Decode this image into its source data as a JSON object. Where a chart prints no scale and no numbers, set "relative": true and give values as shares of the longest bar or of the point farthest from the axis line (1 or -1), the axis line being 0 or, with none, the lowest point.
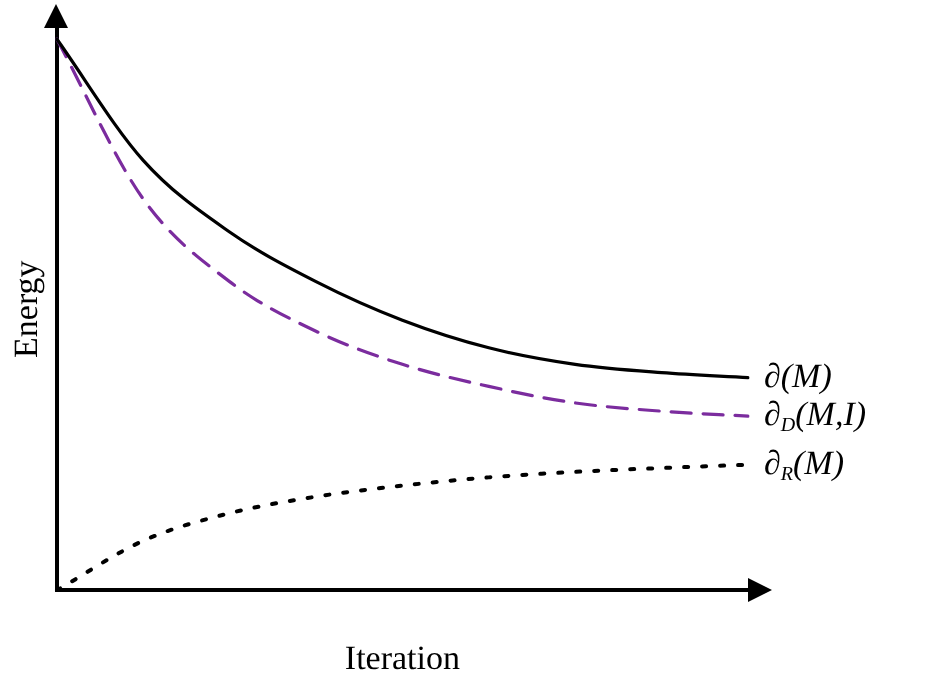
{
  "chart_data": {
    "type": "line",
    "xlabel": "Iteration",
    "ylabel": "Energy",
    "relative": true,
    "grid": false,
    "legend": false,
    "marker": "none",
    "categories": [
      null,
      null,
      null,
      null,
      null,
      null,
      null,
      null,
      null
    ],
    "series": [
      {
        "name": "∂(M)",
        "color": "#000000",
        "line_style": "solid",
        "values": [
          1,
          0.78,
          0.65,
          0.56,
          0.49,
          0.44,
          0.41,
          0.395,
          0.386
        ]
      },
      {
        "name": "∂$_{D}$(M,I)",
        "color": "#7b2c9e",
        "line_style": "dashed",
        "values": [
          1,
          0.71,
          0.56,
          0.47,
          0.41,
          0.37,
          0.34,
          0.325,
          0.316
        ]
      },
      {
        "name": "∂$_{R}$(M)",
        "color": "#000000",
        "line_style": "dotted",
        "values": [
          0,
          0.09,
          0.14,
          0.17,
          0.19,
          0.205,
          0.215,
          0.222,
          0.228
        ]
      }
    ]
  }
}
